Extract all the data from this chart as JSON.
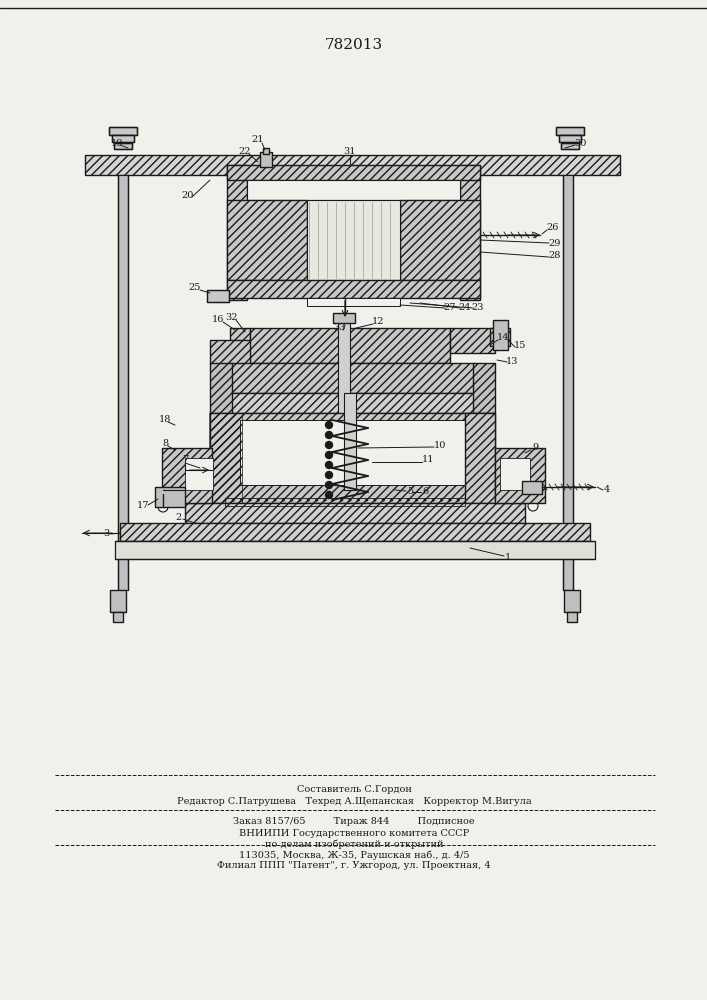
{
  "patent_number": "782013",
  "bg": "#f2f0eb",
  "lc": "#1a1a1a",
  "footer_lines": [
    "Составитель С.Гордон",
    "Редактор С.Патрушева   Техред А.Щепанская   Корректор М.Вигула",
    "Заказ 8157/65         Тираж 844         Подписное",
    "ВНИИПИ Государственного комитета СССР",
    "по делам изобретений и открытий",
    "113035, Москва, Ж-35, Раушская наб., д. 4/5",
    "Филиал ППП \"Патент\", г. Ужгород, ул. Проектная, 4"
  ]
}
